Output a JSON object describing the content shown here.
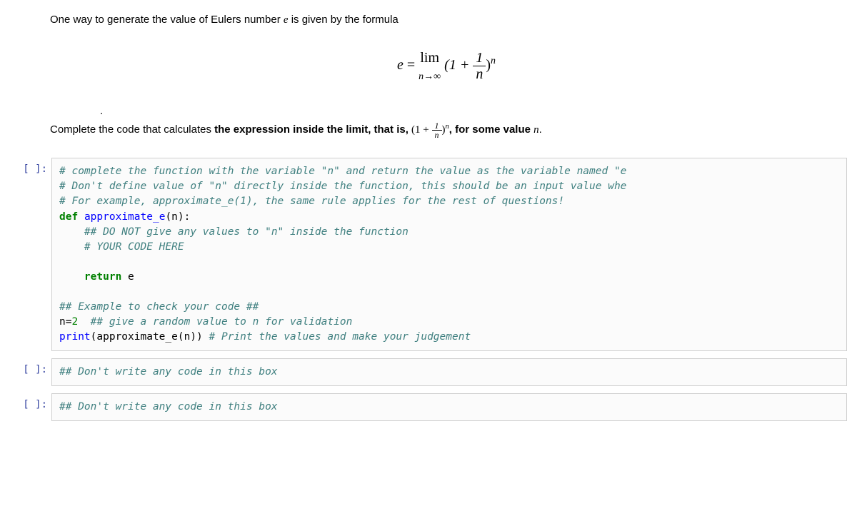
{
  "md": {
    "intro_prefix": "One way to generate the value of Eulers number ",
    "intro_suffix": " is given by the formula",
    "instr_prefix": "Complete the code that calculates ",
    "instr_bold1": "the expression inside the limit, that is, ",
    "instr_mid": ", ",
    "instr_bold2": "for some value ",
    "instr_period": "."
  },
  "formula": {
    "e": "e",
    "eq": " = ",
    "lim": "lim",
    "limsub": "n→∞",
    "open": " (1 + ",
    "frac_num": "1",
    "frac_den": "n",
    "close": ")",
    "exp": "n"
  },
  "inline": {
    "open": "(1 + ",
    "frac_num": "1",
    "frac_den": "n",
    "close": ")",
    "exp": "n"
  },
  "prompts": {
    "empty": "[ ]:"
  },
  "code1": {
    "l1": "# complete the function with the variable \"n\" and return the value as the variable named \"e",
    "l2": "# Don't define value of \"n\" directly inside the function, this should be an input value whe",
    "l3": "# For example, approximate_e(1), the same rule applies for the rest of questions!",
    "l4a": "def",
    "l4b": " ",
    "l4c": "approximate_e",
    "l4d": "(n):",
    "l5": "    ",
    "l5b": "## DO NOT give any values to \"n\" inside the function",
    "l6": "    ",
    "l6b": "# YOUR CODE HERE",
    "l7": "",
    "l8a": "    ",
    "l8b": "return",
    "l8c": " e",
    "l9": "",
    "l10": "## Example to check your code ##",
    "l11a": "n",
    "l11b": "=",
    "l11c": "2",
    "l11d": "  ",
    "l11e": "## give a random value to n for validation",
    "l12a": "print",
    "l12b": "(approximate_e(n)) ",
    "l12c": "# Print the values and make your judgement"
  },
  "code2": {
    "l1": "## Don't write any code in this box"
  },
  "code3": {
    "l1": "## Don't write any code in this box"
  }
}
